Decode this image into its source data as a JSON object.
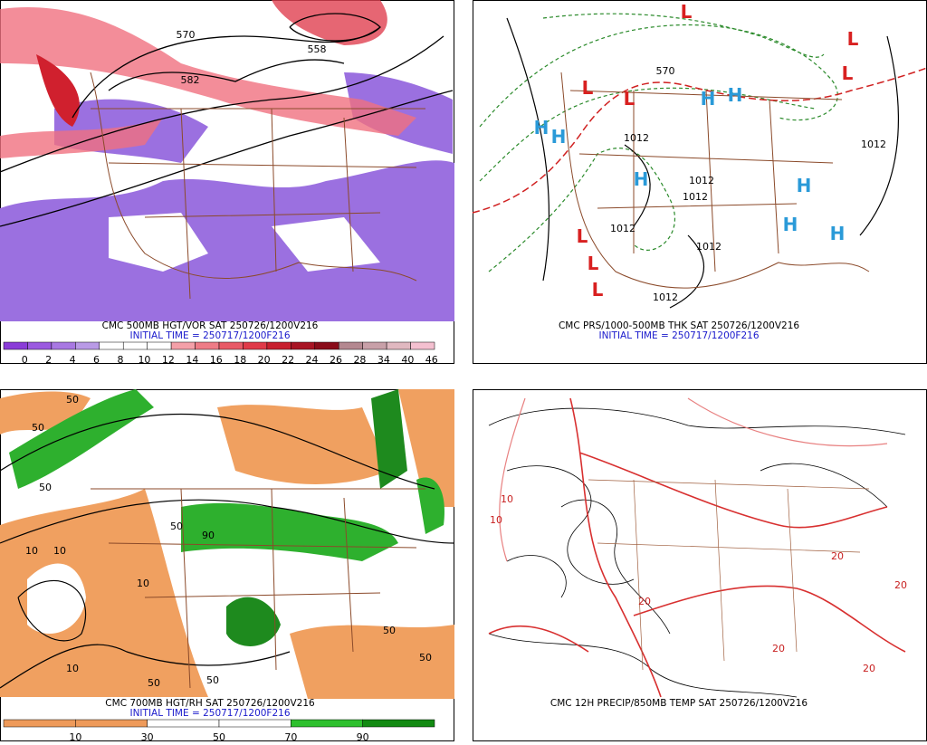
{
  "panels": [
    {
      "caption": "CMC 500MB HGT/VOR SAT 250726/1200V216",
      "initial": "INITIAL TIME = 250717/1200F216",
      "contour_labels": [
        "570",
        "558",
        "582"
      ],
      "colorbar": {
        "labels": [
          "0",
          "2",
          "4",
          "6",
          "8",
          "10",
          "12",
          "14",
          "16",
          "18",
          "20",
          "22",
          "24",
          "26",
          "28",
          "34",
          "40",
          "46"
        ],
        "colors": [
          "#8a3cd8",
          "#9b5ae0",
          "#a878e2",
          "#b99ae6",
          "#ffffff",
          "#ffffff",
          "#ffffff",
          "#f4a0a8",
          "#ee7c86",
          "#e85a66",
          "#e03a48",
          "#c8202e",
          "#a81424",
          "#8a0c1a",
          "#b48890",
          "#c8a0a8",
          "#e0b8c0",
          "#f4c0d0"
        ]
      }
    },
    {
      "caption": "CMC PRS/1000-500MB THK SAT 250726/1200V216",
      "initial": "INITIAL TIME = 250717/1200F216",
      "contour_labels": [
        "570",
        "1012",
        "1012",
        "1012",
        "1012",
        "1012",
        "1012",
        "1012"
      ],
      "centers": [
        "L",
        "L",
        "L",
        "L",
        "L",
        "L",
        "L",
        "L",
        "H",
        "H",
        "H",
        "H",
        "H",
        "H",
        "H",
        "H"
      ]
    },
    {
      "caption": "CMC 700MB HGT/RH SAT 250726/1200V216",
      "initial": "INITIAL TIME = 250717/1200F216",
      "contour_labels": [
        "50",
        "50",
        "50",
        "10",
        "10",
        "10",
        "50",
        "50",
        "90",
        "50",
        "50",
        "10",
        "50"
      ],
      "colorbar": {
        "labels": [
          "10",
          "30",
          "50",
          "70",
          "90"
        ],
        "colors": [
          "#ee9a5a",
          "#ee9a5a",
          "#ffffff",
          "#ffffff",
          "#2ec02e",
          "#128a12"
        ]
      }
    },
    {
      "caption": "CMC 12H PRECIP/850MB TEMP SAT 250726/1200V216",
      "contour_labels": [
        "10",
        "10",
        "20",
        "20",
        "20",
        "20",
        "20"
      ]
    }
  ]
}
